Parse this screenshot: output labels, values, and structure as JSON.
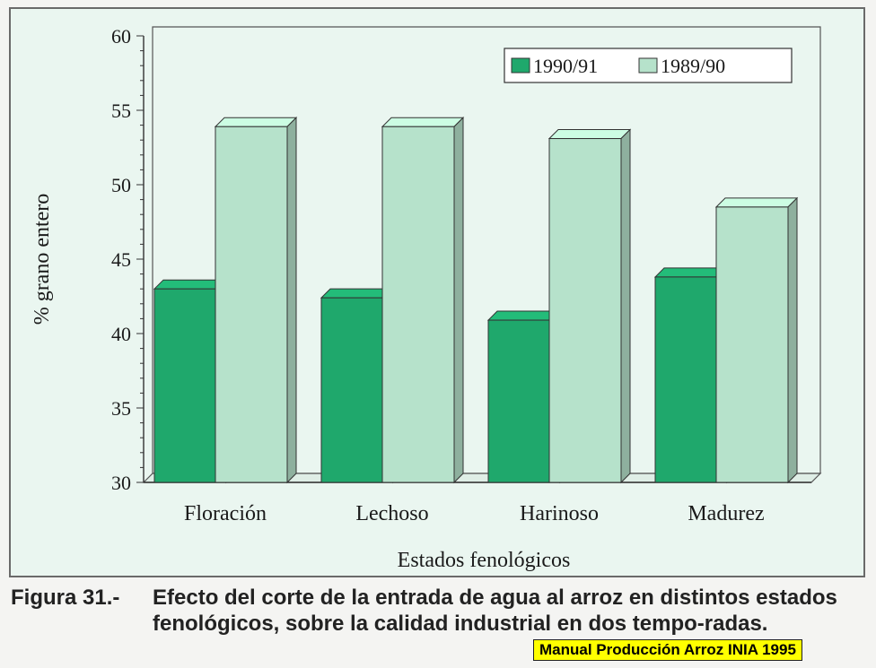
{
  "chart_data": {
    "type": "bar",
    "categories": [
      "Floración",
      "Lechoso",
      "Harinoso",
      "Madurez"
    ],
    "series": [
      {
        "name": "1990/91",
        "values": [
          43,
          42.4,
          40.9,
          43.8
        ],
        "color": "#1fa86c"
      },
      {
        "name": "1989/90",
        "values": [
          53.9,
          53.9,
          53.1,
          48.5
        ],
        "color": "#b6e2cb"
      }
    ],
    "xlabel": "Estados fenológicos",
    "ylabel": "% grano entero",
    "ylim": [
      30,
      60
    ],
    "yticks": [
      30,
      35,
      40,
      45,
      50,
      55,
      60
    ],
    "legend_position": "top-right",
    "style": "3d-bars",
    "background": "#eaf6f0"
  },
  "caption": {
    "label": "Figura 31.-",
    "text": "Efecto del corte de la entrada de agua al arroz en distintos estados fenológicos, sobre la calidad industrial en dos tempo-radas."
  },
  "source": "Manual Producción Arroz INIA 1995"
}
